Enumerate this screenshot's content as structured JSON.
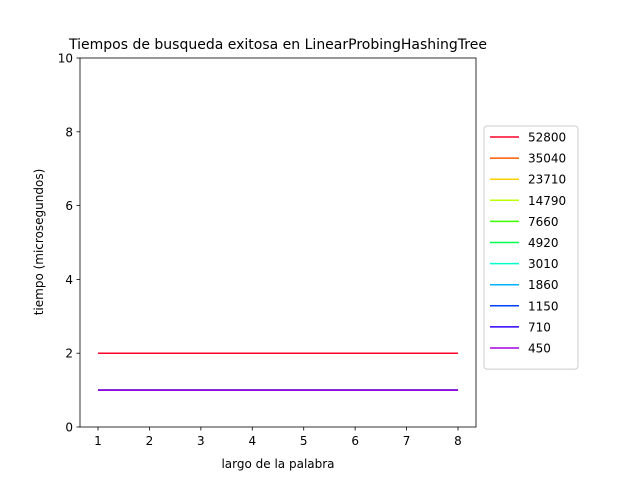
{
  "chart_data": {
    "type": "line",
    "title": "Tiempos de busqueda exitosa en LinearProbingHashingTree",
    "xlabel": "largo de la palabra",
    "ylabel": "tiempo (microsegundos)",
    "x": [
      1,
      2,
      3,
      4,
      5,
      6,
      7,
      8
    ],
    "xticks": [
      "1",
      "2",
      "3",
      "4",
      "5",
      "6",
      "7",
      "8"
    ],
    "yticks": [
      "0",
      "2",
      "4",
      "6",
      "8",
      "10"
    ],
    "xlim": [
      0.65,
      8.35
    ],
    "ylim": [
      0,
      10
    ],
    "grid": false,
    "legend_position": "outside-right",
    "series": [
      {
        "name": "52800",
        "color": "#ff0029",
        "values": [
          2,
          2,
          2,
          2,
          2,
          2,
          2,
          2
        ]
      },
      {
        "name": "35040",
        "color": "#ff5b00",
        "values": [
          1,
          1,
          1,
          1,
          1,
          1,
          1,
          1
        ]
      },
      {
        "name": "23710",
        "color": "#ffce00",
        "values": [
          1,
          1,
          1,
          1,
          1,
          1,
          1,
          1
        ]
      },
      {
        "name": "14790",
        "color": "#bcff00",
        "values": [
          1,
          1,
          1,
          1,
          1,
          1,
          1,
          1
        ]
      },
      {
        "name": "7660",
        "color": "#39ff00",
        "values": [
          1,
          1,
          1,
          1,
          1,
          1,
          1,
          1
        ]
      },
      {
        "name": "4920",
        "color": "#00ff4d",
        "values": [
          1,
          1,
          1,
          1,
          1,
          1,
          1,
          1
        ]
      },
      {
        "name": "3010",
        "color": "#00ffd0",
        "values": [
          1,
          1,
          1,
          1,
          1,
          1,
          1,
          1
        ]
      },
      {
        "name": "1860",
        "color": "#00b1ff",
        "values": [
          1,
          1,
          1,
          1,
          1,
          1,
          1,
          1
        ]
      },
      {
        "name": "1150",
        "color": "#0040ff",
        "values": [
          1,
          1,
          1,
          1,
          1,
          1,
          1,
          1
        ]
      },
      {
        "name": "710",
        "color": "#3000ff",
        "values": [
          1,
          1,
          1,
          1,
          1,
          1,
          1,
          1
        ]
      },
      {
        "name": "450",
        "color": "#a800e0",
        "values": [
          1,
          1,
          1,
          1,
          1,
          1,
          1,
          1
        ]
      }
    ]
  }
}
